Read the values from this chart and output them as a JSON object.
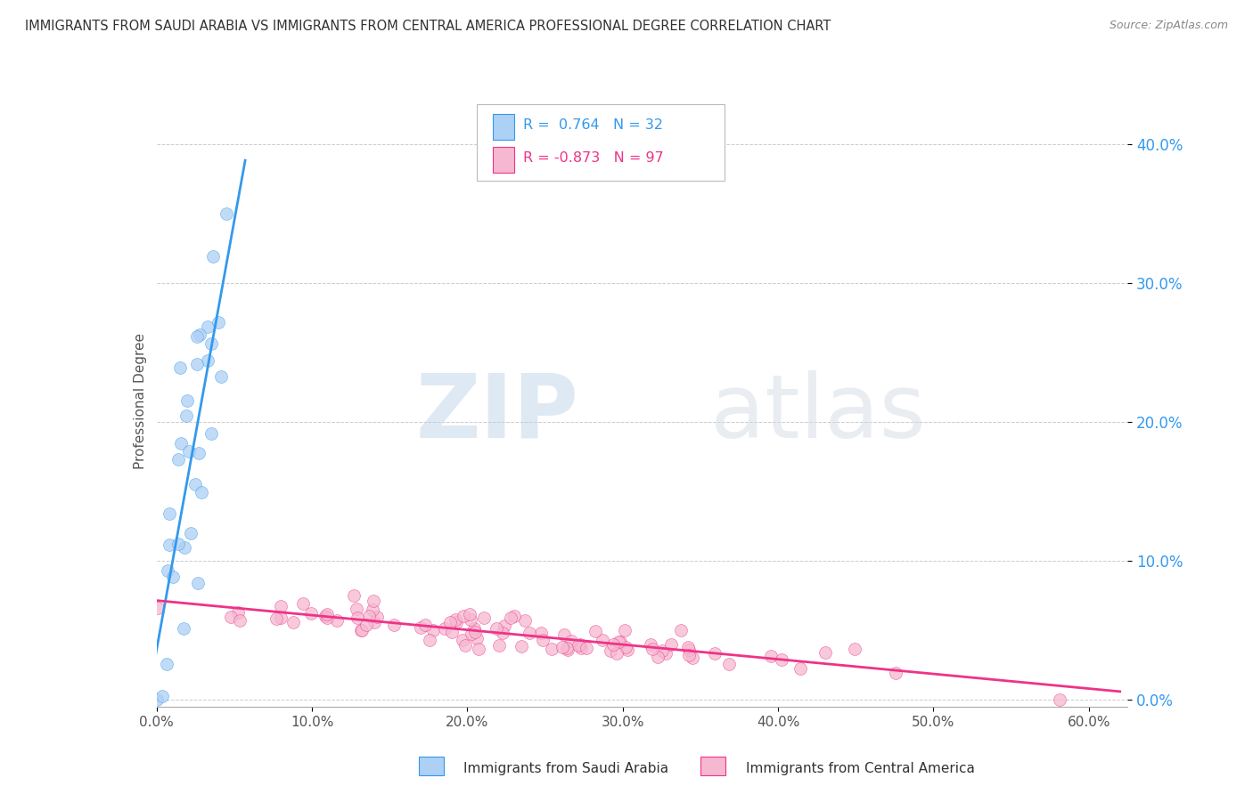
{
  "title": "IMMIGRANTS FROM SAUDI ARABIA VS IMMIGRANTS FROM CENTRAL AMERICA PROFESSIONAL DEGREE CORRELATION CHART",
  "source": "Source: ZipAtlas.com",
  "ylabel": "Professional Degree",
  "xlim": [
    0.0,
    0.625
  ],
  "ylim": [
    -0.005,
    0.435
  ],
  "r_saudi": 0.764,
  "n_saudi": 32,
  "r_central": -0.873,
  "n_central": 97,
  "color_saudi": "#add0f5",
  "color_central": "#f5b8d0",
  "line_color_saudi": "#3399ee",
  "line_color_central": "#ee3388",
  "watermark_zip": "ZIP",
  "watermark_atlas": "atlas",
  "background_color": "#ffffff",
  "grid_color": "#cccccc",
  "legend_label_saudi": "Immigrants from Saudi Arabia",
  "legend_label_central": "Immigrants from Central America"
}
